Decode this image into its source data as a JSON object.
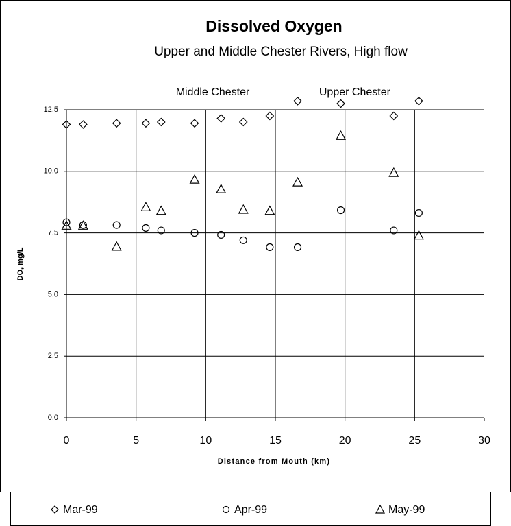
{
  "chart_data": {
    "type": "scatter",
    "title": "Dissolved Oxygen",
    "subtitle": "Upper and Middle Chester Rivers, High flow",
    "x_label": "Distance from Mouth (km)",
    "y_label": "DO, mg/L",
    "annotations": [
      {
        "text": "Middle Chester",
        "x": 10.5,
        "y": 13.2
      },
      {
        "text": "Upper Chester",
        "x": 20.7,
        "y": 13.2
      }
    ],
    "xlim": [
      0,
      30
    ],
    "xticks": [
      0,
      5,
      10,
      15,
      20,
      25,
      30
    ],
    "ylim": [
      0,
      12.5
    ],
    "yticks": [
      {
        "value": 0,
        "label": "0.0"
      },
      2.5,
      {
        "value": 5,
        "label": "5.0"
      },
      7.5,
      {
        "value": 10,
        "label": "10.0"
      },
      12.5
    ],
    "grid": true,
    "legend": "bottom",
    "series": [
      {
        "name": "Mar-99",
        "color": "#000000",
        "marker": "diamond",
        "x": [
          0,
          1.2,
          3.6,
          5.7,
          6.8,
          9.2,
          11.1,
          12.7,
          14.6,
          16.6,
          19.7,
          23.5,
          25.3
        ],
        "values": [
          11.9,
          11.9,
          11.95,
          11.95,
          12.0,
          11.95,
          12.15,
          12.0,
          12.25,
          12.85,
          12.75,
          12.25,
          12.85
        ]
      },
      {
        "name": "Apr-99",
        "color": "#000000",
        "marker": "circle",
        "x": [
          0,
          1.2,
          3.6,
          5.7,
          6.8,
          9.2,
          11.1,
          12.7,
          14.6,
          16.6,
          19.7,
          23.5,
          25.3
        ],
        "values": [
          7.93,
          7.82,
          7.82,
          7.7,
          7.6,
          7.5,
          7.42,
          7.2,
          6.92,
          6.92,
          8.42,
          7.6,
          8.31
        ]
      },
      {
        "name": "May-99",
        "color": "#000000",
        "marker": "triangle",
        "x": [
          0,
          1.2,
          3.6,
          5.7,
          6.8,
          9.2,
          11.1,
          12.7,
          14.6,
          16.6,
          19.7,
          23.5,
          25.3
        ],
        "values": [
          7.8,
          7.8,
          6.95,
          8.55,
          8.4,
          9.67,
          9.28,
          8.45,
          8.4,
          9.56,
          11.45,
          9.95,
          7.4
        ]
      }
    ]
  }
}
